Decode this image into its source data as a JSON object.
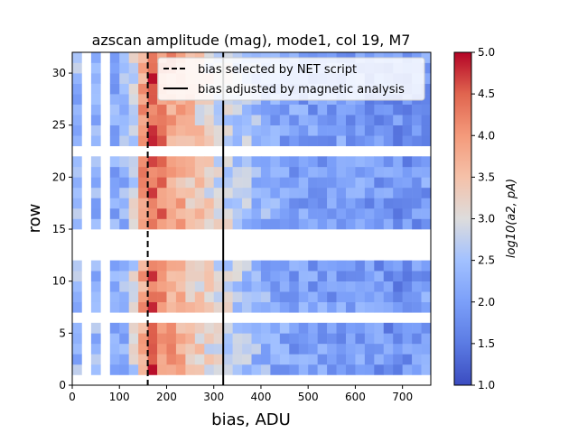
{
  "chart_data": {
    "type": "heatmap",
    "title": "azscan amplitude (mag), mode1, col 19, M7",
    "xlabel": "bias, ADU",
    "ylabel": "row",
    "xlim": [
      0,
      760
    ],
    "ylim": [
      0,
      32
    ],
    "x_ticks": [
      0,
      100,
      200,
      300,
      400,
      500,
      600,
      700
    ],
    "y_ticks": [
      0,
      5,
      10,
      15,
      20,
      25,
      30
    ],
    "colormap": "coolwarm",
    "colorbar": {
      "label": "log10(a2, pA)",
      "range": [
        1.0,
        5.0
      ],
      "ticks": [
        "1.0",
        "1.5",
        "2.0",
        "2.5",
        "3.0",
        "3.5",
        "4.0",
        "4.5",
        "5.0"
      ]
    },
    "bin_width_adu": 20,
    "missing_bias_bins": [
      20,
      60
    ],
    "rows_with_data": [
      1,
      2,
      3,
      4,
      5,
      7,
      8,
      9,
      10,
      11,
      15,
      16,
      17,
      18,
      19,
      20,
      21,
      23,
      24,
      25,
      26,
      27,
      28,
      29,
      30,
      31
    ],
    "empty_rows": [
      0,
      6,
      12,
      13,
      14,
      22
    ],
    "vertical_lines": [
      {
        "label": "bias selected by NET script",
        "x": 160,
        "style": "dashed",
        "color": "#000000"
      },
      {
        "label": "bias adjusted by magnetic analysis",
        "x": 320,
        "style": "solid",
        "color": "#000000"
      }
    ],
    "legend_location": "upper-right",
    "profile_note": "log10 amplitude per (row, bias) cell; peak near bias 140-200 ADU, decaying to ~2.0 at high bias",
    "profile": {
      "bias": [
        0,
        40,
        80,
        120,
        140,
        160,
        180,
        200,
        240,
        280,
        320,
        360,
        400,
        440,
        480,
        520,
        580,
        640,
        700,
        760
      ],
      "typical_log_amplitude": [
        2.4,
        2.3,
        2.2,
        2.4,
        3.2,
        4.6,
        4.4,
        4.0,
        3.6,
        3.2,
        2.9,
        2.6,
        2.3,
        2.1,
        2.0,
        2.0,
        2.0,
        1.9,
        1.8,
        2.0
      ]
    }
  },
  "ui": {
    "legend_entries": [
      "bias selected by NET script",
      "bias adjusted by magnetic analysis"
    ]
  }
}
